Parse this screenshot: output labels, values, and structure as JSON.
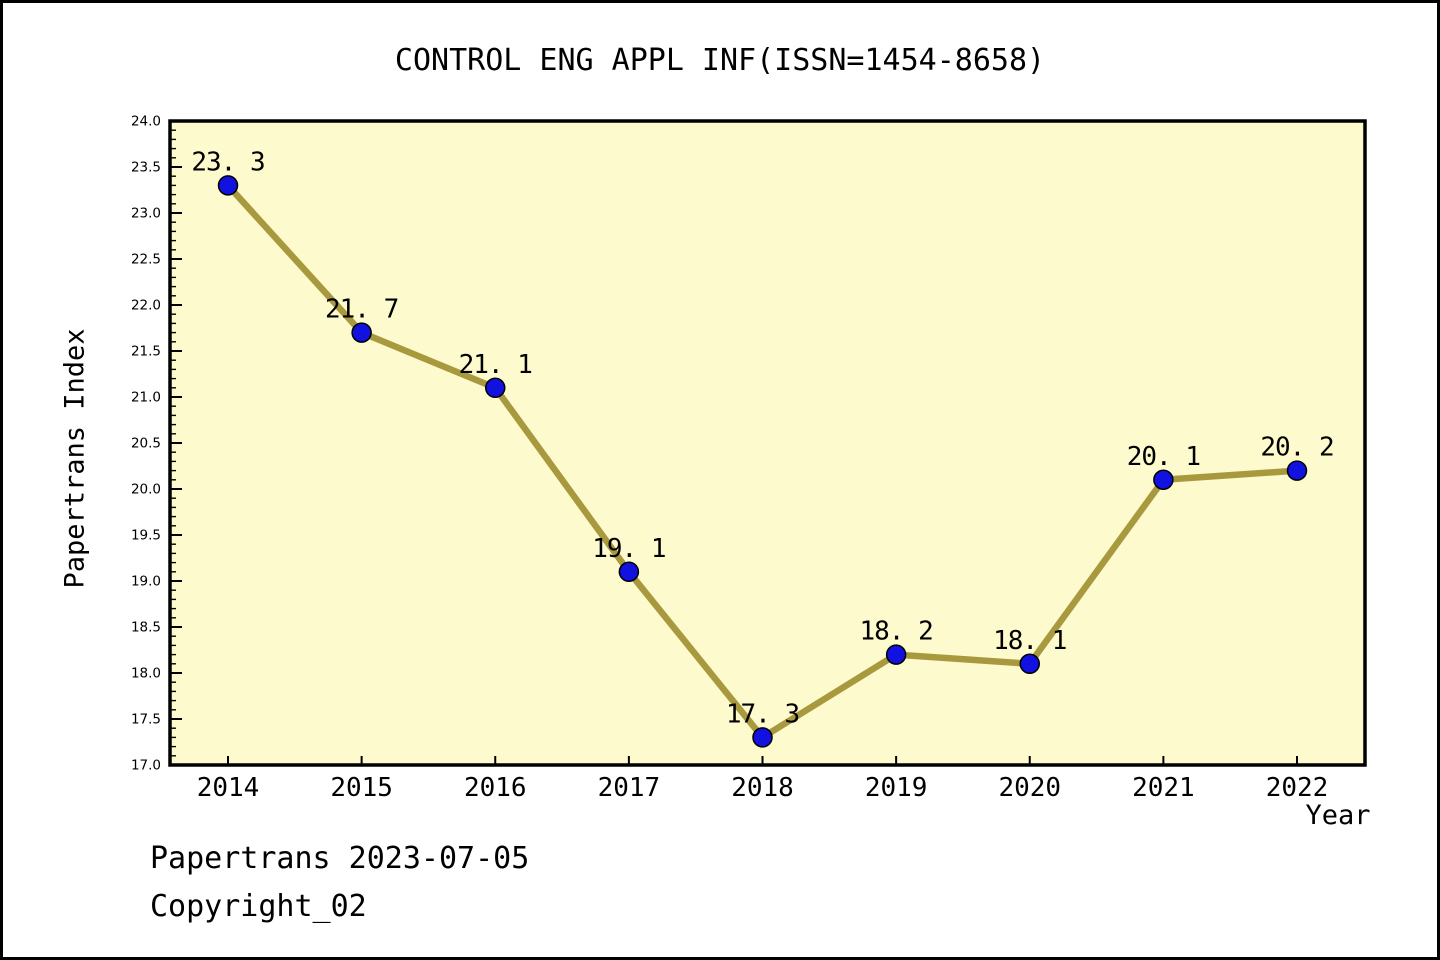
{
  "title": "CONTROL ENG APPL INF(ISSN=1454-8658)",
  "footer": {
    "line1": "Papertrans 2023-07-05",
    "line2": "Copyright_02"
  },
  "chart_data": {
    "type": "line",
    "title": "CONTROL ENG APPL INF(ISSN=1454-8658)",
    "xlabel": "Year",
    "ylabel": "Papertrans Index",
    "categories": [
      "2014",
      "2015",
      "2016",
      "2017",
      "2018",
      "2019",
      "2020",
      "2021",
      "2022"
    ],
    "values": [
      23.3,
      21.7,
      21.1,
      19.1,
      17.3,
      18.2,
      18.1,
      20.1,
      20.2
    ],
    "point_labels": [
      "23. 3",
      "21. 7",
      "21. 1",
      "19. 1",
      "17. 3",
      "18. 2",
      "18. 1",
      "20. 1",
      "20. 2"
    ],
    "ylim": [
      17.0,
      24.0
    ],
    "y_major_step": 0.5,
    "y_minor_step": 0.1,
    "y_tick_labels": [
      "17.0",
      "17.5",
      "18.0",
      "18.5",
      "19.0",
      "19.5",
      "20.0",
      "20.5",
      "21.0",
      "21.5",
      "22.0",
      "22.5",
      "23.0",
      "23.5",
      "24.0"
    ],
    "grid": "off",
    "legend": "none",
    "colors": {
      "plot_background": "#FDFACD",
      "outer_background": "#FFFFFF",
      "line": "#A8993F",
      "marker_fill": "#1111E0",
      "marker_edge": "#000000",
      "axis": "#000000",
      "text": "#000000"
    }
  }
}
